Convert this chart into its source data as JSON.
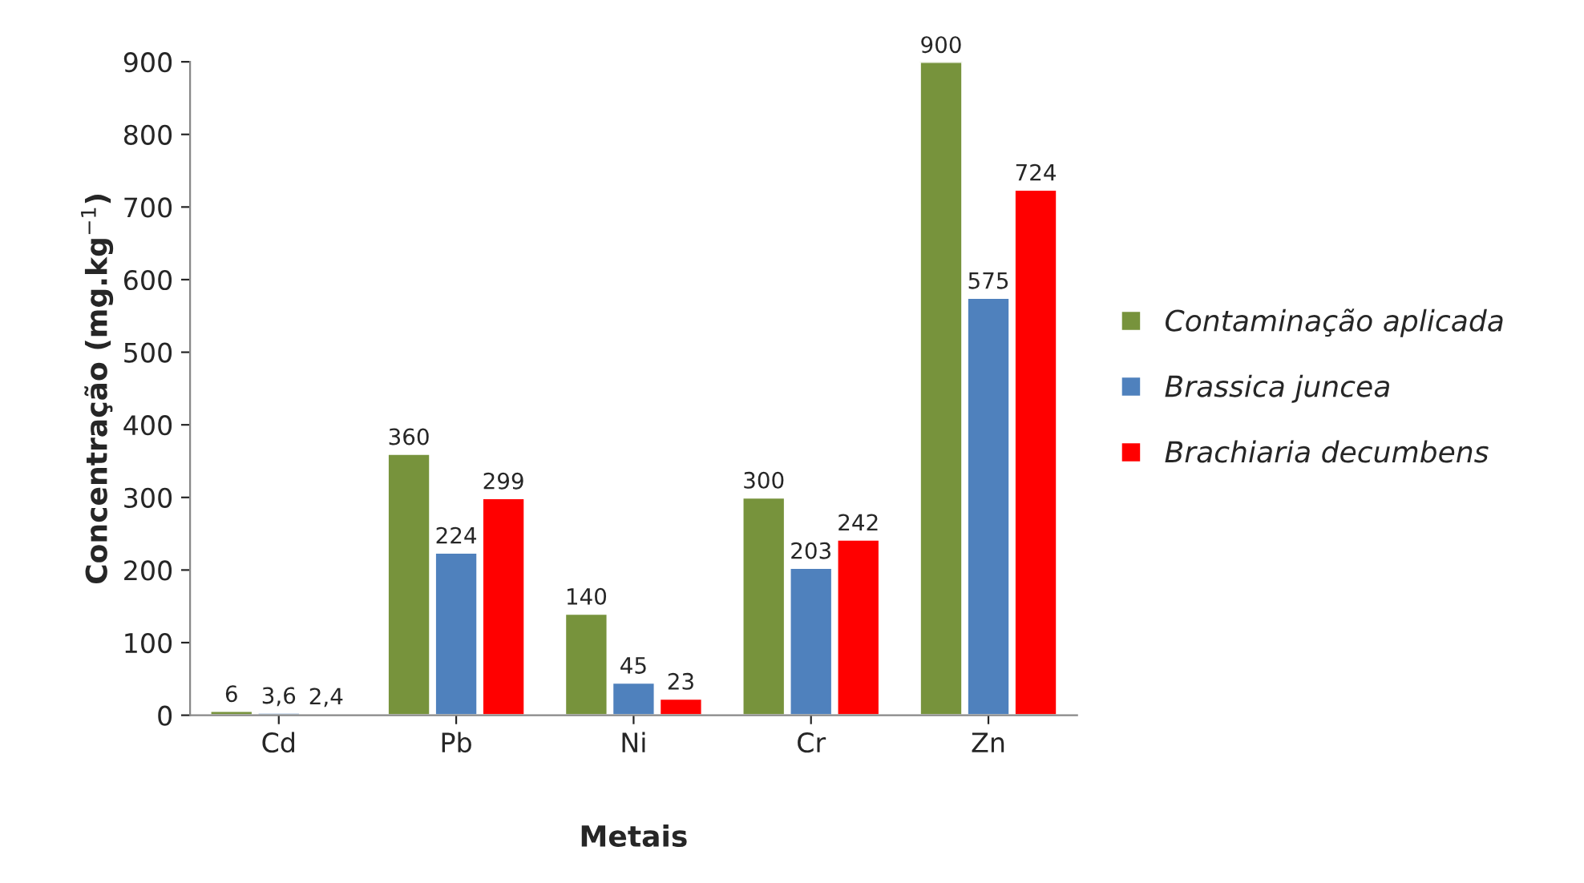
{
  "chart_data": {
    "type": "bar",
    "xlabel": "Metais",
    "ylabel": "Concentração (mg.kg$^{−1}$)",
    "categories": [
      "Cd",
      "Pb",
      "Ni",
      "Cr",
      "Zn"
    ],
    "series": [
      {
        "name": "Contaminação aplicada",
        "color": "#77933c",
        "values": [
          6,
          360,
          140,
          300,
          900
        ],
        "value_labels": [
          "6",
          "360",
          "140",
          "300",
          "900"
        ]
      },
      {
        "name": "Brassica juncea",
        "color": "#4f81bd",
        "values": [
          3.6,
          224,
          45,
          203,
          575
        ],
        "value_labels": [
          "3,6",
          "224",
          "45",
          "203",
          "575"
        ]
      },
      {
        "name": "Brachiaria decumbens",
        "color": "#ff0000",
        "values": [
          2.4,
          299,
          23,
          242,
          724
        ],
        "value_labels": [
          "2,4",
          "299",
          "23",
          "242",
          "724"
        ]
      }
    ],
    "ylim": [
      0,
      900
    ],
    "yticks": [
      0,
      100,
      200,
      300,
      400,
      500,
      600,
      700,
      800,
      900
    ],
    "grid": false,
    "legend": "right"
  }
}
